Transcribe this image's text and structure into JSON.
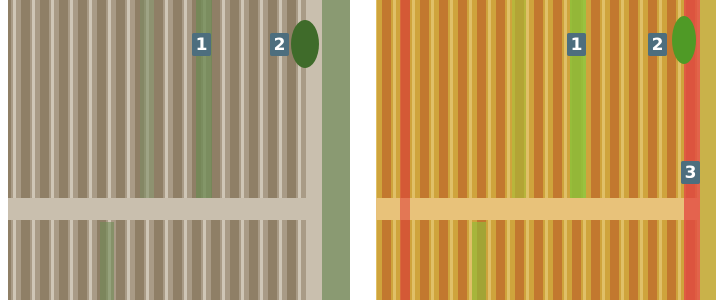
{
  "left_image": {
    "labels": [
      "1",
      "2"
    ]
  },
  "right_image": {
    "labels": [
      "1",
      "2",
      "3"
    ]
  }
}
